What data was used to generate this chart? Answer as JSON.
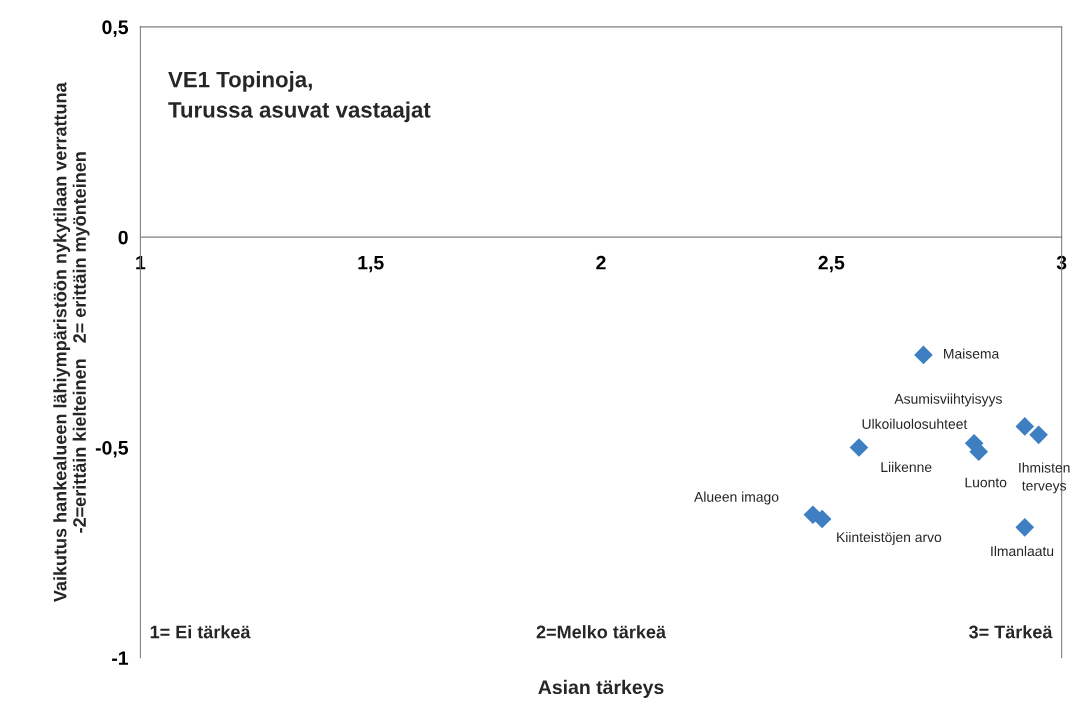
{
  "chart_data": {
    "type": "scatter",
    "title": "VE1 Topinoja,\nTurussa asuvat vastaajat",
    "xlabel": "Asian tärkeys",
    "ylabel": "Vaikutus hankealueen lähiympäristöön nykytilaan verrattuna\n-2=erittäin kielteinen   2= erittäin myönteinen",
    "x": [
      2.7,
      2.92,
      2.95,
      2.81,
      2.82,
      2.56,
      2.46,
      2.48,
      2.92
    ],
    "series": [
      {
        "color": "#3d7fc1",
        "values": [
          -0.28,
          -0.45,
          -0.47,
          -0.49,
          -0.51,
          -0.5,
          -0.66,
          -0.67,
          -0.69
        ]
      }
    ],
    "marker": "diamond",
    "grid": false,
    "legend": false,
    "xlim": [
      1,
      3
    ],
    "xticks": [
      {
        "value": 1,
        "label": "1"
      },
      {
        "value": 1.5,
        "label": "1,5"
      },
      {
        "value": 2,
        "label": "2"
      },
      {
        "value": 2.5,
        "label": "2,5"
      },
      {
        "value": 3,
        "label": "3"
      }
    ],
    "ylim": [
      -1,
      0.5
    ],
    "yticks": [
      {
        "value": -1,
        "label": "-1"
      },
      {
        "value": -0.5,
        "label": "-0,5"
      },
      {
        "value": 0,
        "label": "0"
      },
      {
        "value": 0.5,
        "label": "0,5"
      }
    ],
    "annotations": [
      "1= Ei tärkeä",
      "2=Melko tärkeä",
      "3= Tärkeä",
      {
        "text": "Maisema",
        "x": 2.7,
        "y": -0.28
      },
      {
        "text": "Asumisviihtyisyys",
        "x": 2.92,
        "y": -0.45
      },
      {
        "text": "Ihmisten\nterveys",
        "x": 2.95,
        "y": -0.47
      },
      {
        "text": "Ulkoiluolosuhteet",
        "x": 2.81,
        "y": -0.49
      },
      {
        "text": "Luonto",
        "x": 2.82,
        "y": -0.51
      },
      {
        "text": "Liikenne",
        "x": 2.56,
        "y": -0.5
      },
      {
        "text": "Alueen imago",
        "x": 2.46,
        "y": -0.66
      },
      {
        "text": "Kiinteistöjen arvo",
        "x": 2.48,
        "y": -0.67
      },
      {
        "text": "Ilmanlaatu",
        "x": 2.92,
        "y": -0.69
      }
    ]
  }
}
